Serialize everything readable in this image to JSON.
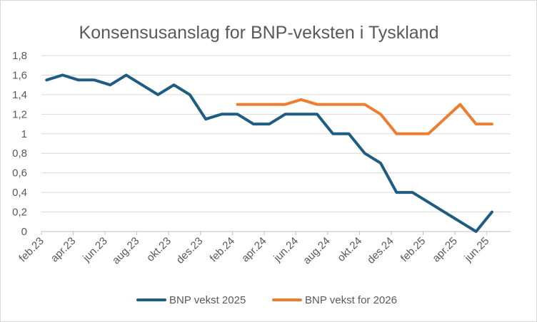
{
  "chart_data": {
    "type": "line",
    "title": "Konsensusanslag for BNP-veksten i Tyskland",
    "xlabel": "",
    "ylabel": "",
    "ylim": [
      0,
      1.8
    ],
    "yticks": [
      "0",
      "0,2",
      "0,4",
      "0,6",
      "0,8",
      "1",
      "1,2",
      "1,4",
      "1,6",
      "1,8"
    ],
    "yticks_values": [
      0,
      0.2,
      0.4,
      0.6,
      0.8,
      1.0,
      1.2,
      1.4,
      1.6,
      1.8
    ],
    "grid": true,
    "legend_position": "bottom",
    "x_tick_labels": [
      "feb.23",
      "apr.23",
      "jun.23",
      "aug.23",
      "okt.23",
      "des.23",
      "feb.24",
      "apr.24",
      "jun.24",
      "aug.24",
      "okt.24",
      "des.24",
      "feb.25",
      "apr.25",
      "jun.25"
    ],
    "x_tick_index": [
      0,
      2,
      4,
      6,
      8,
      10,
      12,
      14,
      16,
      18,
      20,
      22,
      24,
      26,
      28
    ],
    "n_points": 30,
    "series": [
      {
        "name": "BNP vekst 2025",
        "color": "#1f5c82",
        "start_index": 0,
        "values": [
          1.55,
          1.6,
          1.55,
          1.55,
          1.5,
          1.6,
          1.5,
          1.4,
          1.5,
          1.4,
          1.15,
          1.2,
          1.2,
          1.1,
          1.1,
          1.2,
          1.2,
          1.2,
          1.0,
          1.0,
          0.8,
          0.7,
          0.4,
          0.4,
          0.3,
          0.2,
          0.1,
          0.0,
          0.2
        ]
      },
      {
        "name": "BNP vekst for 2026",
        "color": "#ed7d31",
        "start_index": 12,
        "values": [
          1.3,
          1.3,
          1.3,
          1.3,
          1.35,
          1.3,
          1.3,
          1.3,
          1.3,
          1.2,
          1.0,
          1.0,
          1.0,
          1.15,
          1.3,
          1.1,
          1.1
        ]
      }
    ]
  }
}
